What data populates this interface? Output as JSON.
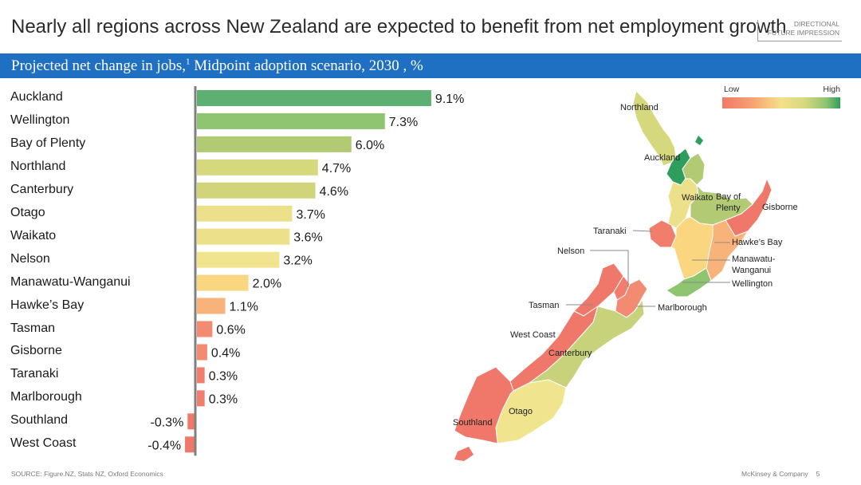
{
  "title": "Nearly all regions across New Zealand are expected to benefit from net employment growth",
  "tag": {
    "line1": "DIRECTIONAL",
    "line2": "FUTURE IMPRESSION"
  },
  "subtitle": {
    "text": "Projected net change in jobs,",
    "sup": "1",
    "rest": " Midpoint adoption scenario, 2030 , %"
  },
  "chart_data": {
    "type": "bar",
    "orientation": "horizontal",
    "categories": [
      "Auckland",
      "Wellington",
      "Bay of Plenty",
      "Northland",
      "Canterbury",
      "Otago",
      "Waikato",
      "Nelson",
      "Manawatu-Wanganui",
      "Hawke’s Bay",
      "Tasman",
      "Gisborne",
      "Taranaki",
      "Marlborough",
      "Southland",
      "West Coast"
    ],
    "values": [
      9.1,
      7.3,
      6.0,
      4.7,
      4.6,
      3.7,
      3.6,
      3.2,
      2.0,
      1.1,
      0.6,
      0.4,
      0.3,
      0.3,
      -0.3,
      -0.4
    ],
    "labels": [
      "9.1%",
      "7.3%",
      "6.0%",
      "4.7%",
      "4.6%",
      "3.7%",
      "3.6%",
      "3.2%",
      "2.0%",
      "1.1%",
      "0.6%",
      "0.4%",
      "0.3%",
      "0.3%",
      "-0.3%",
      "-0.4%"
    ],
    "colors": [
      "#5bb072",
      "#8fc471",
      "#b2ca73",
      "#d6d87e",
      "#d2d47c",
      "#ece08a",
      "#ece08a",
      "#f1e48e",
      "#f9d67f",
      "#f8b37b",
      "#f38b72",
      "#f38b72",
      "#f17e6c",
      "#f17e6c",
      "#f0786a",
      "#f0786a"
    ],
    "xlim": [
      -0.5,
      9.5
    ]
  },
  "map": {
    "legend_low": "Low",
    "legend_high": "High",
    "labels": {
      "northland": "Northland",
      "auckland": "Auckland",
      "waikato": "Waikato",
      "bop1": "Bay of",
      "bop2": "Plenty",
      "gisborne": "Gisborne",
      "taranaki": "Taranaki",
      "hawkes": "Hawke’s Bay",
      "nelson": "Nelson",
      "manawatu1": "Manawatu-",
      "manawatu2": "Wanganui",
      "wellington": "Wellington",
      "tasman": "Tasman",
      "marlborough": "Marlborough",
      "westcoast": "West Coast",
      "canterbury": "Canterbury",
      "otago": "Otago",
      "southland": "Southland"
    }
  },
  "source": "SOURCE: Figure.NZ, Stats NZ, Oxford Economics",
  "footer": {
    "company": "McKinsey & Company",
    "page": "5"
  }
}
